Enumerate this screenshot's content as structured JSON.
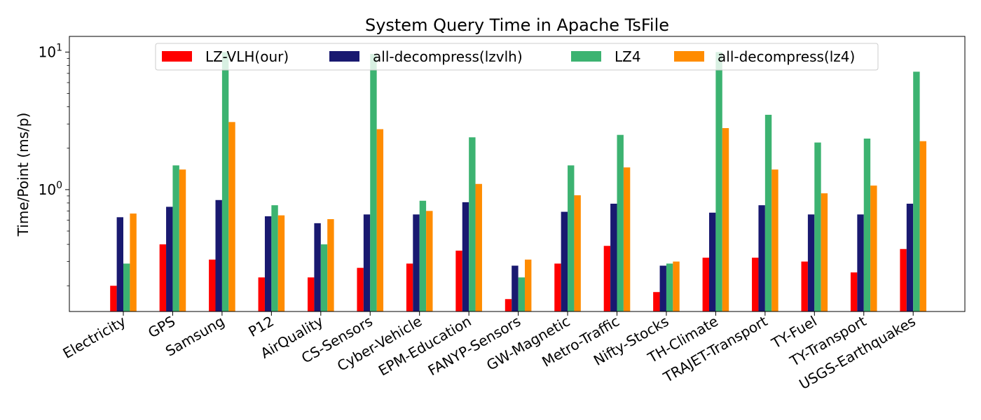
{
  "chart_data": {
    "type": "bar",
    "title": "System Query Time in Apache TsFile",
    "xlabel": "",
    "ylabel": "Time/Point (ms/p)",
    "yscale": "log",
    "ylim": [
      0.13,
      13
    ],
    "yticks": [
      {
        "value": 1,
        "base": "10",
        "exp": "0"
      },
      {
        "value": 10,
        "base": "10",
        "exp": "1"
      }
    ],
    "legend": {
      "placement": "top",
      "columns": 4
    },
    "categories": [
      "Electricity",
      "GPS",
      "Samsung",
      "P12",
      "AirQuality",
      "CS-Sensors",
      "Cyber-Vehicle",
      "EPM-Education",
      "FANYP-Sensors",
      "GW-Magnetic",
      "Metro-Traffic",
      "Nifty-Stocks",
      "TH-Climate",
      "TRAJET-Transport",
      "TY-Fuel",
      "TY-Transport",
      "USGS-Earthquakes"
    ],
    "series": [
      {
        "name": "LZ-VLH(our)",
        "color": "#ff0000",
        "values": [
          0.2,
          0.4,
          0.31,
          0.23,
          0.23,
          0.27,
          0.29,
          0.36,
          0.16,
          0.29,
          0.39,
          0.18,
          0.32,
          0.32,
          0.3,
          0.25,
          0.37
        ]
      },
      {
        "name": "all-decompress(lzvlh)",
        "color": "#191970",
        "values": [
          0.63,
          0.75,
          0.84,
          0.64,
          0.57,
          0.66,
          0.66,
          0.81,
          0.28,
          0.69,
          0.79,
          0.28,
          0.68,
          0.77,
          0.66,
          0.66,
          0.79
        ]
      },
      {
        "name": "LZ4",
        "color": "#3cb371",
        "values": [
          0.29,
          1.5,
          10,
          0.77,
          0.4,
          9.7,
          0.83,
          2.4,
          0.23,
          1.5,
          2.5,
          0.29,
          10,
          3.5,
          2.2,
          2.35,
          7.2
        ]
      },
      {
        "name": "all-decompress(lz4)",
        "color": "#ff8c00",
        "values": [
          0.67,
          1.4,
          3.1,
          0.65,
          0.61,
          2.75,
          0.7,
          1.1,
          0.31,
          0.91,
          1.45,
          0.3,
          2.8,
          1.4,
          0.94,
          1.07,
          2.25
        ]
      }
    ]
  }
}
